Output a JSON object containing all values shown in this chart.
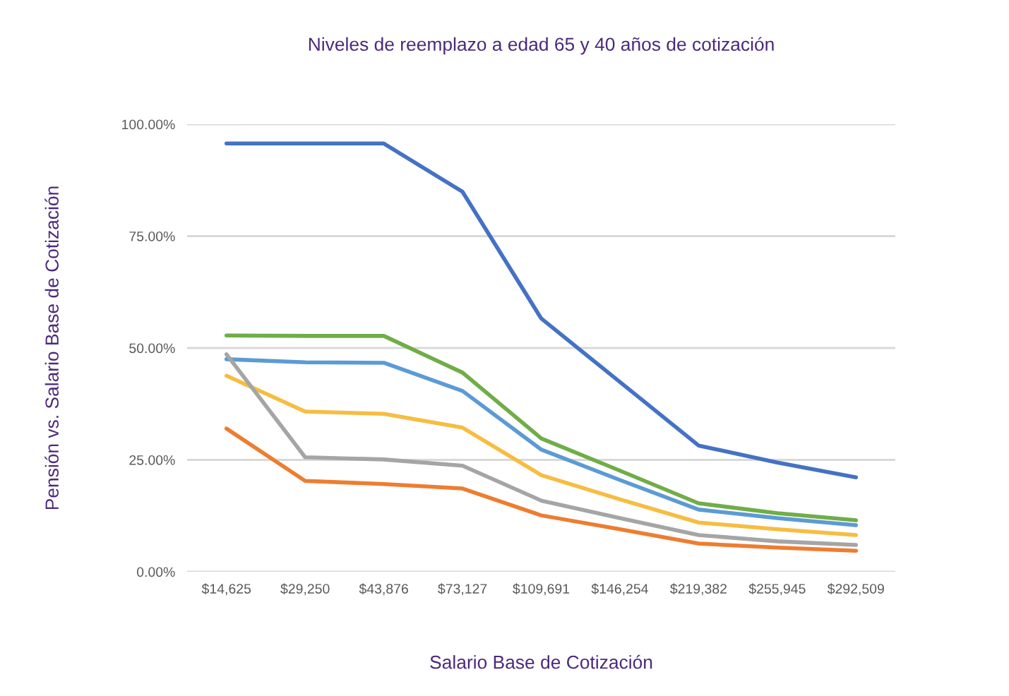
{
  "chart_data": {
    "type": "line",
    "title": "Niveles de reemplazo a edad 65 y 40 años de cotización",
    "xlabel": "Salario Base de Cotización",
    "ylabel": "Pensión vs. Salario Base de Cotización",
    "categories": [
      "$14,625",
      "$29,250",
      "$43,876",
      "$73,127",
      "$109,691",
      "$146,254",
      "$219,382",
      "$255,945",
      "$292,509"
    ],
    "series": [
      {
        "color": "#4472c4",
        "values": [
          95.7,
          95.7,
          95.7,
          84.9,
          56.6,
          42.4,
          28.2,
          24.4,
          21.1
        ]
      },
      {
        "color": "#70ad47",
        "values": [
          52.8,
          52.7,
          52.7,
          44.5,
          29.8,
          22.6,
          15.3,
          13.1,
          11.5
        ]
      },
      {
        "color": "#5b9bd5",
        "values": [
          47.5,
          46.8,
          46.7,
          40.4,
          27.3,
          20.5,
          13.9,
          12.0,
          10.4
        ]
      },
      {
        "color": "#f6bd41",
        "values": [
          43.8,
          35.8,
          35.3,
          32.2,
          21.6,
          16.2,
          11.0,
          9.5,
          8.2
        ]
      },
      {
        "color": "#a5a5a5",
        "values": [
          48.6,
          25.6,
          25.1,
          23.7,
          15.9,
          12.0,
          8.2,
          6.8,
          6.0
        ]
      },
      {
        "color": "#ed7d31",
        "values": [
          32.0,
          20.3,
          19.6,
          18.6,
          12.6,
          9.5,
          6.3,
          5.4,
          4.7
        ]
      }
    ],
    "ylim": [
      0,
      100
    ],
    "yticks": [
      {
        "value": 0,
        "label": "0.00%"
      },
      {
        "value": 25,
        "label": "25.00%"
      },
      {
        "value": 50,
        "label": "50.00%"
      },
      {
        "value": 75,
        "label": "75.00%"
      },
      {
        "value": 100,
        "label": "100.00%"
      }
    ],
    "grid": "y",
    "marker": "none",
    "line_style": "solid"
  }
}
